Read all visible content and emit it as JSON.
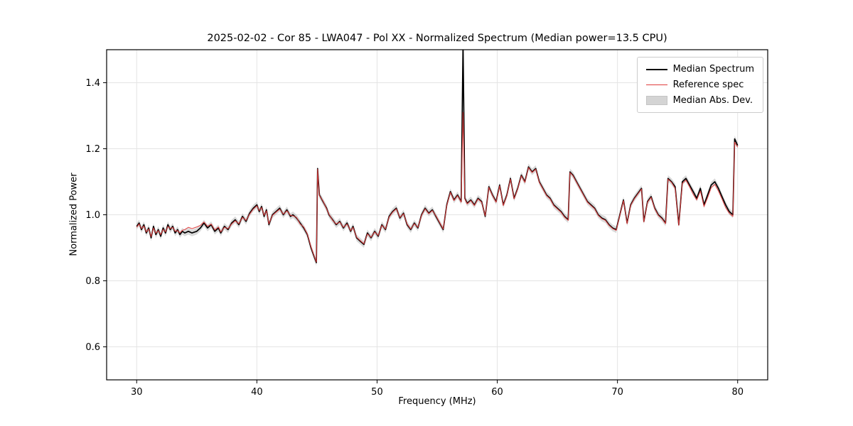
{
  "legend": {
    "median_label": "Median Spectrum",
    "reference_label": "Reference spec",
    "mad_label": "Median Abs. Dev."
  },
  "chart_data": {
    "type": "line",
    "title": "2025-02-02 - Cor 85 - LWA047 - Pol XX - Normalized Spectrum (Median power=13.5 CPU)",
    "xlabel": "Frequency (MHz)",
    "ylabel": "Normalized Power",
    "xlim": [
      27.5,
      82.5
    ],
    "ylim": [
      0.5,
      1.5
    ],
    "xticks": [
      30,
      40,
      50,
      60,
      70,
      80
    ],
    "yticks": [
      0.6,
      0.8,
      1.0,
      1.2,
      1.4
    ],
    "grid": true,
    "legend_position": "upper right",
    "x": [
      30.0,
      30.2,
      30.4,
      30.6,
      30.8,
      31.0,
      31.2,
      31.4,
      31.6,
      31.8,
      32.0,
      32.2,
      32.4,
      32.6,
      32.8,
      33.0,
      33.2,
      33.4,
      33.6,
      33.8,
      34.0,
      34.3,
      34.6,
      35.0,
      35.3,
      35.6,
      35.9,
      36.2,
      36.5,
      36.8,
      37.0,
      37.3,
      37.6,
      37.9,
      38.2,
      38.5,
      38.8,
      39.1,
      39.4,
      39.7,
      40.0,
      40.2,
      40.4,
      40.6,
      40.8,
      41.0,
      41.3,
      41.6,
      41.9,
      42.2,
      42.5,
      42.8,
      43.0,
      43.3,
      43.6,
      43.9,
      44.2,
      44.5,
      44.8,
      44.95,
      45.05,
      45.2,
      45.5,
      45.8,
      46.0,
      46.3,
      46.6,
      46.9,
      47.2,
      47.5,
      47.8,
      48.0,
      48.3,
      48.6,
      48.9,
      49.2,
      49.5,
      49.8,
      50.1,
      50.4,
      50.7,
      51.0,
      51.3,
      51.6,
      51.9,
      52.2,
      52.5,
      52.8,
      53.1,
      53.4,
      53.7,
      54.0,
      54.3,
      54.6,
      54.9,
      55.2,
      55.5,
      55.8,
      56.1,
      56.4,
      56.7,
      57.0,
      57.15,
      57.3,
      57.5,
      57.8,
      58.1,
      58.4,
      58.7,
      59.0,
      59.3,
      59.6,
      59.9,
      60.2,
      60.5,
      60.8,
      61.1,
      61.4,
      61.7,
      62.0,
      62.3,
      62.6,
      62.9,
      63.2,
      63.5,
      63.8,
      64.1,
      64.4,
      64.7,
      65.0,
      65.3,
      65.6,
      65.9,
      66.05,
      66.3,
      66.6,
      66.9,
      67.2,
      67.5,
      67.8,
      68.1,
      68.4,
      68.7,
      69.0,
      69.3,
      69.6,
      69.9,
      70.2,
      70.5,
      70.8,
      71.1,
      71.4,
      71.7,
      72.0,
      72.2,
      72.5,
      72.8,
      73.1,
      73.4,
      73.7,
      74.0,
      74.2,
      74.5,
      74.8,
      75.1,
      75.4,
      75.7,
      76.0,
      76.3,
      76.6,
      76.9,
      77.2,
      77.5,
      77.8,
      78.1,
      78.4,
      78.7,
      79.0,
      79.3,
      79.6,
      79.75,
      80.0
    ],
    "series": [
      {
        "name": "Median Spectrum",
        "color": "#000000",
        "linewidth": 1.7,
        "opacity": 1,
        "values": [
          0.965,
          0.975,
          0.955,
          0.97,
          0.945,
          0.96,
          0.93,
          0.965,
          0.94,
          0.955,
          0.935,
          0.96,
          0.945,
          0.97,
          0.955,
          0.965,
          0.945,
          0.955,
          0.94,
          0.95,
          0.945,
          0.95,
          0.945,
          0.95,
          0.96,
          0.975,
          0.96,
          0.97,
          0.95,
          0.96,
          0.945,
          0.965,
          0.955,
          0.975,
          0.985,
          0.97,
          0.995,
          0.98,
          1.005,
          1.02,
          1.03,
          1.01,
          1.025,
          0.995,
          1.015,
          0.97,
          1.0,
          1.01,
          1.02,
          1.0,
          1.015,
          0.995,
          1.0,
          0.99,
          0.975,
          0.96,
          0.94,
          0.9,
          0.87,
          0.855,
          1.14,
          1.06,
          1.04,
          1.02,
          1.0,
          0.985,
          0.97,
          0.98,
          0.96,
          0.975,
          0.95,
          0.965,
          0.93,
          0.92,
          0.91,
          0.945,
          0.93,
          0.95,
          0.935,
          0.97,
          0.955,
          0.995,
          1.01,
          1.02,
          0.99,
          1.005,
          0.97,
          0.955,
          0.975,
          0.96,
          1.0,
          1.02,
          1.005,
          1.015,
          0.995,
          0.975,
          0.955,
          1.03,
          1.07,
          1.045,
          1.06,
          1.04,
          1.52,
          1.05,
          1.035,
          1.045,
          1.03,
          1.05,
          1.04,
          0.995,
          1.085,
          1.06,
          1.04,
          1.09,
          1.03,
          1.06,
          1.11,
          1.05,
          1.08,
          1.12,
          1.1,
          1.145,
          1.13,
          1.14,
          1.1,
          1.08,
          1.06,
          1.05,
          1.03,
          1.02,
          1.01,
          0.995,
          0.985,
          1.13,
          1.12,
          1.1,
          1.08,
          1.06,
          1.04,
          1.03,
          1.02,
          1.0,
          0.99,
          0.985,
          0.97,
          0.96,
          0.955,
          1.0,
          1.045,
          0.975,
          1.03,
          1.05,
          1.065,
          1.08,
          0.98,
          1.04,
          1.055,
          1.02,
          1.0,
          0.99,
          0.975,
          1.11,
          1.1,
          1.085,
          0.97,
          1.1,
          1.11,
          1.09,
          1.07,
          1.05,
          1.08,
          1.03,
          1.06,
          1.09,
          1.1,
          1.08,
          1.055,
          1.03,
          1.01,
          1.0,
          1.23,
          1.21
        ]
      },
      {
        "name": "Reference spec",
        "color": "#e03c3c",
        "linewidth": 1.1,
        "opacity": 0.9,
        "values": [
          0.962,
          0.972,
          0.958,
          0.966,
          0.948,
          0.957,
          0.934,
          0.96,
          0.944,
          0.952,
          0.94,
          0.956,
          0.948,
          0.965,
          0.958,
          0.962,
          0.95,
          0.952,
          0.945,
          0.953,
          0.955,
          0.962,
          0.958,
          0.963,
          0.968,
          0.978,
          0.965,
          0.972,
          0.954,
          0.963,
          0.948,
          0.962,
          0.958,
          0.972,
          0.982,
          0.973,
          0.992,
          0.983,
          1.002,
          1.017,
          1.027,
          1.013,
          1.022,
          0.998,
          1.012,
          0.973,
          0.998,
          1.008,
          1.017,
          1.002,
          1.012,
          0.998,
          0.997,
          0.992,
          0.972,
          0.963,
          0.942,
          0.903,
          0.872,
          0.857,
          1.138,
          1.058,
          1.042,
          1.018,
          1.002,
          0.983,
          0.972,
          0.978,
          0.962,
          0.972,
          0.952,
          0.962,
          0.932,
          0.922,
          0.912,
          0.942,
          0.932,
          0.948,
          0.937,
          0.968,
          0.957,
          0.993,
          1.008,
          1.018,
          0.992,
          1.003,
          0.972,
          0.957,
          0.973,
          0.962,
          0.998,
          1.018,
          1.003,
          1.013,
          0.997,
          0.977,
          0.957,
          1.028,
          1.068,
          1.043,
          1.058,
          1.038,
          1.31,
          1.048,
          1.033,
          1.043,
          1.028,
          1.048,
          1.038,
          0.997,
          1.083,
          1.058,
          1.038,
          1.088,
          1.028,
          1.058,
          1.108,
          1.048,
          1.078,
          1.118,
          1.098,
          1.143,
          1.128,
          1.138,
          1.098,
          1.078,
          1.058,
          1.048,
          1.028,
          1.018,
          1.008,
          0.993,
          0.983,
          1.128,
          1.118,
          1.098,
          1.078,
          1.058,
          1.038,
          1.028,
          1.018,
          0.998,
          0.988,
          0.983,
          0.968,
          0.958,
          0.953,
          0.998,
          1.043,
          0.973,
          1.028,
          1.048,
          1.063,
          1.078,
          0.978,
          1.038,
          1.053,
          1.018,
          0.998,
          0.988,
          0.973,
          1.108,
          1.098,
          1.08,
          0.968,
          1.095,
          1.105,
          1.085,
          1.062,
          1.045,
          1.072,
          1.025,
          1.052,
          1.082,
          1.092,
          1.072,
          1.048,
          1.022,
          1.005,
          0.995,
          1.22,
          1.205
        ]
      }
    ],
    "band": {
      "name": "Median Abs. Dev.",
      "around": "Median Spectrum",
      "halfwidth": 0.01,
      "color": "#aaaaaa",
      "alpha": 0.45
    }
  }
}
